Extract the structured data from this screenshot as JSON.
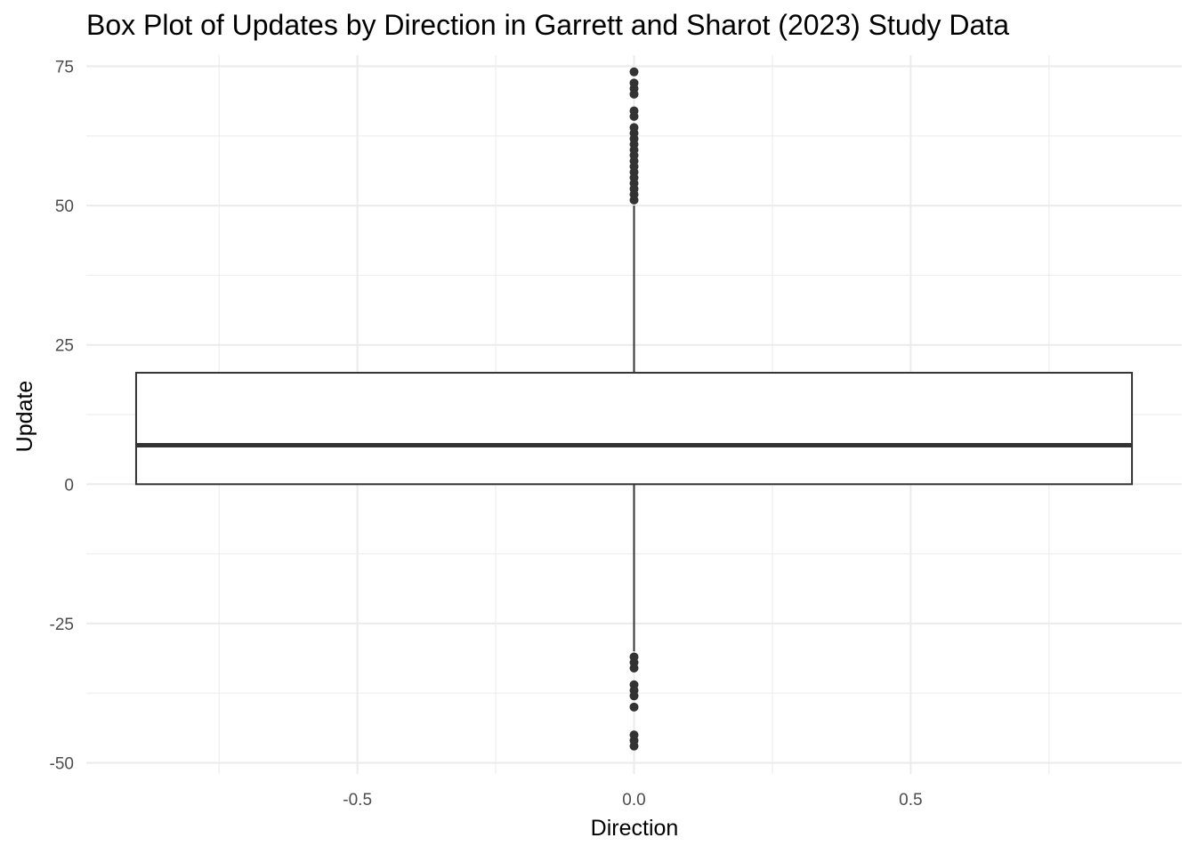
{
  "chart_data": {
    "type": "box",
    "title": "Box Plot of Updates by Direction in Garrett and Sharot (2023) Study Data",
    "xlabel": "Direction",
    "ylabel": "Update",
    "xlim": [
      -0.99,
      0.99
    ],
    "ylim": [
      -52,
      77
    ],
    "x_ticks": [
      -0.5,
      0.0,
      0.5
    ],
    "x_tick_labels": [
      "-0.5",
      "0.0",
      "0.5"
    ],
    "y_ticks": [
      -50,
      -25,
      0,
      25,
      50,
      75
    ],
    "y_tick_labels": [
      "-50",
      "-25",
      "0",
      "25",
      "50",
      "75"
    ],
    "x_minor_ticks": [
      -0.75,
      -0.25,
      0.25,
      0.75
    ],
    "y_minor_ticks": [
      -37.5,
      -12.5,
      12.5,
      37.5,
      62.5
    ],
    "grid": true,
    "box": {
      "x": 0,
      "x_min": -0.9,
      "x_max": 0.9,
      "q1": 0,
      "median": 7,
      "q3": 20,
      "whisker_low": -30,
      "whisker_high": 50
    },
    "outliers": [
      74,
      72,
      71,
      70,
      67,
      66,
      64,
      63,
      62,
      61,
      60,
      59,
      58,
      57,
      56,
      55,
      54,
      53,
      52,
      51,
      -31,
      -32,
      -33,
      -36,
      -37,
      -38,
      -40,
      -45,
      -46,
      -47
    ],
    "colors": {
      "box_line": "#333333",
      "outlier": "#333333",
      "grid": "#ebebeb"
    }
  }
}
